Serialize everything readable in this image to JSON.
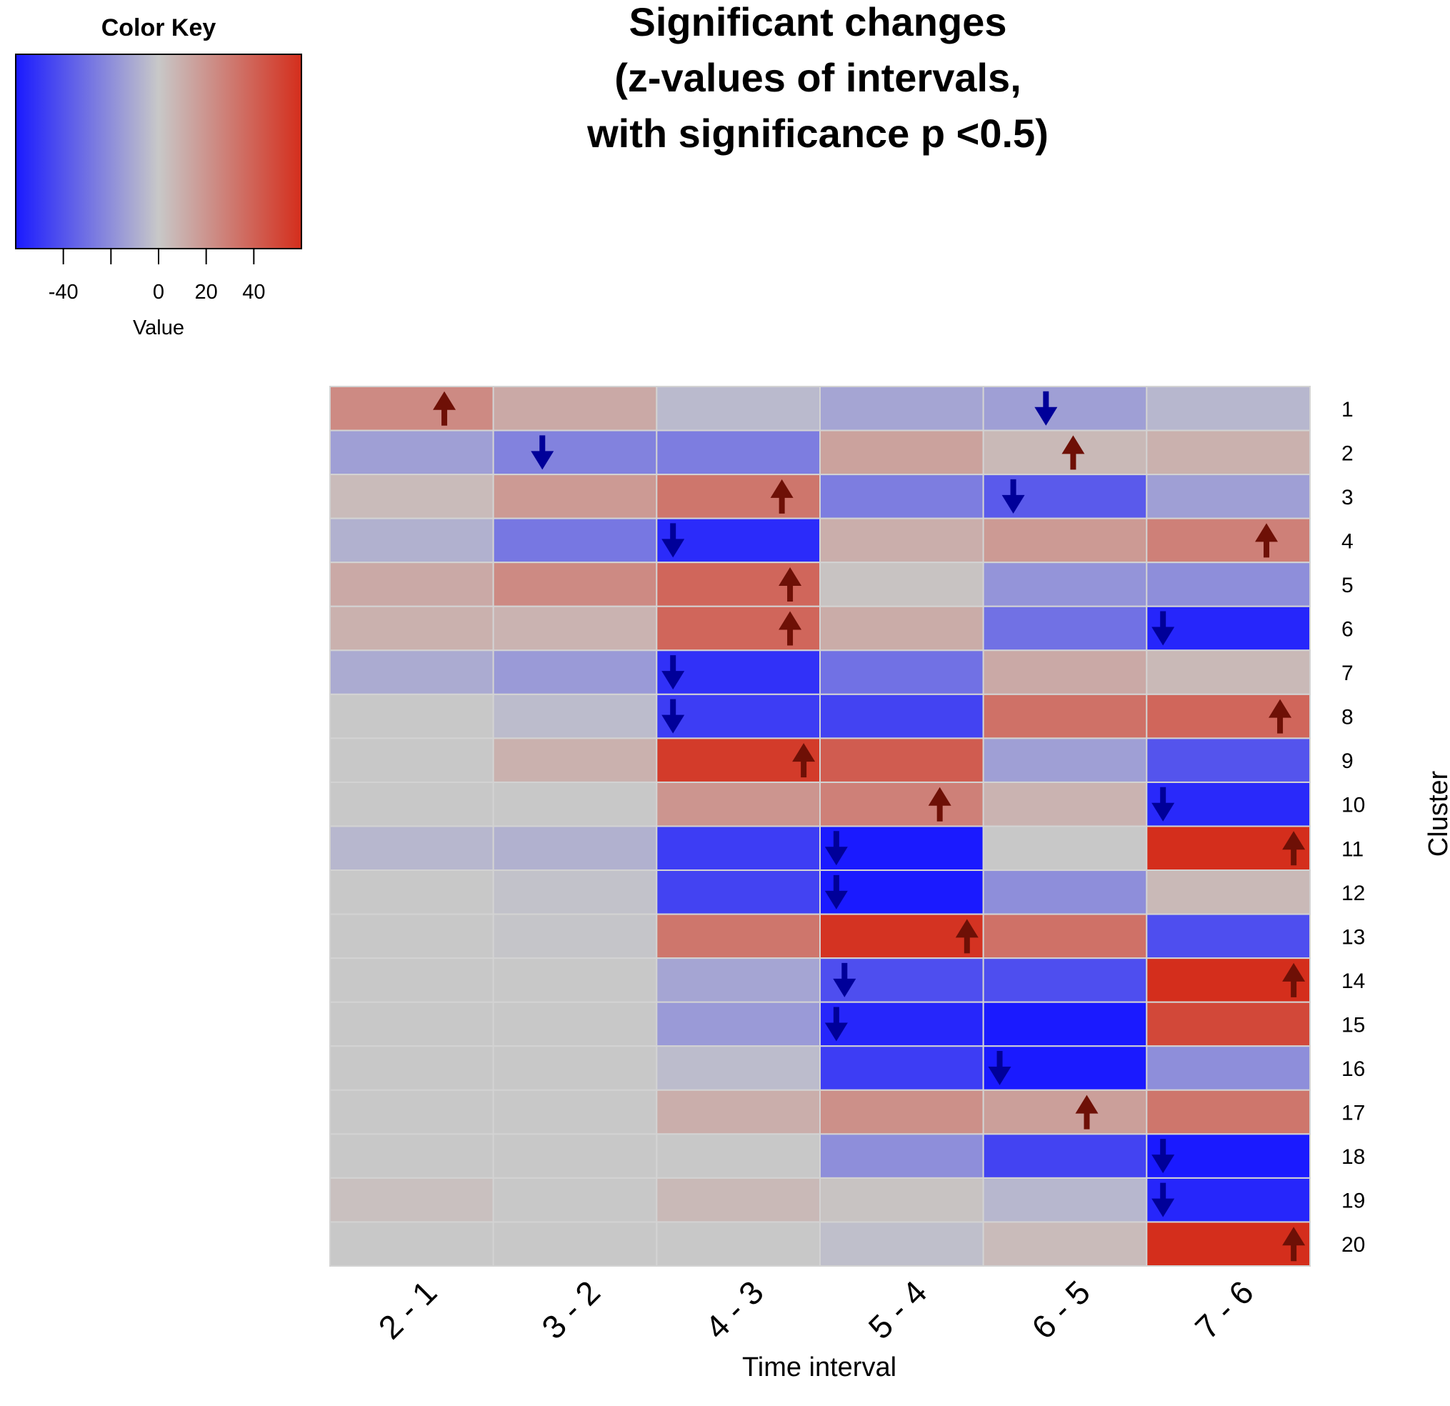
{
  "chart_data": {
    "type": "heatmap",
    "title": [
      "Significant changes",
      "(z-values of intervals,",
      "with significance p <0.5)"
    ],
    "xlabel": "Time interval",
    "ylabel": "Cluster",
    "columns": [
      "2 - 1",
      "3 - 2",
      "4 - 3",
      "5 - 4",
      "6 - 5",
      "7 - 6"
    ],
    "rows": [
      "1",
      "2",
      "3",
      "4",
      "5",
      "6",
      "7",
      "8",
      "9",
      "10",
      "11",
      "12",
      "13",
      "14",
      "15",
      "16",
      "17",
      "18",
      "19",
      "20"
    ],
    "values": [
      [
        24,
        12,
        -5,
        -12,
        -14,
        -6
      ],
      [
        -14,
        -24,
        -26,
        15,
        6,
        9
      ],
      [
        5,
        18,
        32,
        -26,
        -38,
        -14
      ],
      [
        -8,
        -28,
        -54,
        10,
        18,
        28
      ],
      [
        12,
        24,
        38,
        2,
        -18,
        -20
      ],
      [
        9,
        8,
        38,
        11,
        -30,
        -56
      ],
      [
        -10,
        -16,
        -52,
        -30,
        12,
        6
      ],
      [
        null,
        -4,
        -48,
        -46,
        34,
        38
      ],
      [
        null,
        9,
        55,
        42,
        -14,
        -40
      ],
      [
        null,
        null,
        20,
        28,
        8,
        -55
      ],
      [
        -6,
        -8,
        -48,
        -64,
        0,
        60
      ],
      [
        null,
        -2,
        -46,
        -62,
        -20,
        6
      ],
      [
        null,
        -1,
        32,
        58,
        34,
        -42
      ],
      [
        null,
        null,
        -12,
        -42,
        -42,
        60
      ],
      [
        null,
        null,
        -16,
        -56,
        -60,
        50
      ],
      [
        null,
        null,
        -4,
        -48,
        -60,
        -20
      ],
      [
        null,
        null,
        10,
        22,
        16,
        32
      ],
      [
        null,
        null,
        null,
        -20,
        -46,
        -64
      ],
      [
        3,
        null,
        6,
        2,
        -6,
        -56
      ],
      [
        null,
        null,
        null,
        -3,
        5,
        60
      ]
    ],
    "significant_arrows": [
      {
        "row": "1",
        "col": "2 - 1",
        "direction": "up"
      },
      {
        "row": "1",
        "col": "6 - 5",
        "direction": "down"
      },
      {
        "row": "2",
        "col": "3 - 2",
        "direction": "down"
      },
      {
        "row": "2",
        "col": "6 - 5",
        "direction": "up"
      },
      {
        "row": "3",
        "col": "4 - 3",
        "direction": "up"
      },
      {
        "row": "3",
        "col": "6 - 5",
        "direction": "down"
      },
      {
        "row": "4",
        "col": "4 - 3",
        "direction": "down"
      },
      {
        "row": "4",
        "col": "7 - 6",
        "direction": "up"
      },
      {
        "row": "5",
        "col": "4 - 3",
        "direction": "up"
      },
      {
        "row": "6",
        "col": "4 - 3",
        "direction": "up"
      },
      {
        "row": "6",
        "col": "7 - 6",
        "direction": "down"
      },
      {
        "row": "7",
        "col": "4 - 3",
        "direction": "down"
      },
      {
        "row": "8",
        "col": "4 - 3",
        "direction": "down"
      },
      {
        "row": "8",
        "col": "7 - 6",
        "direction": "up"
      },
      {
        "row": "9",
        "col": "4 - 3",
        "direction": "up"
      },
      {
        "row": "10",
        "col": "5 - 4",
        "direction": "up"
      },
      {
        "row": "10",
        "col": "7 - 6",
        "direction": "down"
      },
      {
        "row": "11",
        "col": "5 - 4",
        "direction": "down"
      },
      {
        "row": "11",
        "col": "7 - 6",
        "direction": "up"
      },
      {
        "row": "12",
        "col": "5 - 4",
        "direction": "down"
      },
      {
        "row": "13",
        "col": "5 - 4",
        "direction": "up"
      },
      {
        "row": "14",
        "col": "5 - 4",
        "direction": "down"
      },
      {
        "row": "14",
        "col": "7 - 6",
        "direction": "up"
      },
      {
        "row": "15",
        "col": "5 - 4",
        "direction": "down"
      },
      {
        "row": "16",
        "col": "6 - 5",
        "direction": "down"
      },
      {
        "row": "17",
        "col": "6 - 5",
        "direction": "up"
      },
      {
        "row": "18",
        "col": "7 - 6",
        "direction": "down"
      },
      {
        "row": "19",
        "col": "7 - 6",
        "direction": "down"
      },
      {
        "row": "20",
        "col": "7 - 6",
        "direction": "up"
      }
    ],
    "color_key": {
      "title": "Color Key",
      "label": "Value",
      "range": [
        -60,
        60
      ],
      "ticks": [
        -40,
        0,
        20,
        40
      ],
      "tick_marks": [
        -40,
        -20,
        0,
        20,
        40
      ],
      "low_color": "#1a1aff",
      "mid_color": "#c8c8c8",
      "high_color": "#d42e1c",
      "na_color": "#c8c8c8",
      "up_arrow_color": "#6e1006",
      "down_arrow_color": "#000099"
    }
  }
}
